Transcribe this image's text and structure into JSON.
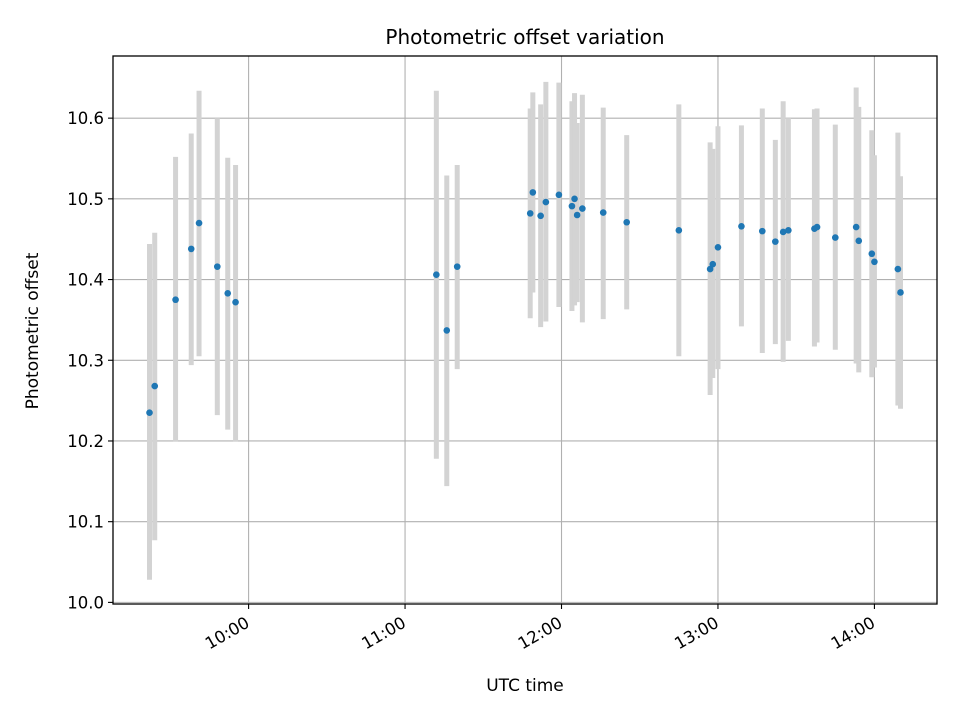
{
  "chart_data": {
    "type": "scatter",
    "title": "Photometric offset variation",
    "xlabel": "UTC time",
    "ylabel": "Photometric offset",
    "xlim": [
      "09:08",
      "14:24"
    ],
    "ylim": [
      9.998,
      10.677
    ],
    "x_ticks": [
      "10:00",
      "11:00",
      "12:00",
      "13:00",
      "14:00"
    ],
    "y_ticks": [
      "10.0",
      "10.1",
      "10.2",
      "10.3",
      "10.4",
      "10.5",
      "10.6"
    ],
    "grid": true,
    "colors": {
      "points": "#1f77b4",
      "error_bars": "#d3d3d3",
      "grid": "#b0b0b0"
    },
    "series": [
      {
        "points": [
          {
            "x": "09:22",
            "y": 10.235,
            "ylow": 10.028,
            "yhigh": 10.444
          },
          {
            "x": "09:24",
            "y": 10.268,
            "ylow": 10.077,
            "yhigh": 10.458
          },
          {
            "x": "09:32",
            "y": 10.375,
            "ylow": 10.199,
            "yhigh": 10.552
          },
          {
            "x": "09:38",
            "y": 10.438,
            "ylow": 10.294,
            "yhigh": 10.581
          },
          {
            "x": "09:41",
            "y": 10.47,
            "ylow": 10.305,
            "yhigh": 10.634
          },
          {
            "x": "09:48",
            "y": 10.416,
            "ylow": 10.232,
            "yhigh": 10.6
          },
          {
            "x": "09:52",
            "y": 10.383,
            "ylow": 10.214,
            "yhigh": 10.551
          },
          {
            "x": "09:55",
            "y": 10.372,
            "ylow": 10.199,
            "yhigh": 10.542
          },
          {
            "x": "11:12",
            "y": 10.406,
            "ylow": 10.178,
            "yhigh": 10.634
          },
          {
            "x": "11:16",
            "y": 10.337,
            "ylow": 10.144,
            "yhigh": 10.529
          },
          {
            "x": "11:20",
            "y": 10.416,
            "ylow": 10.289,
            "yhigh": 10.542
          },
          {
            "x": "11:48",
            "y": 10.482,
            "ylow": 10.352,
            "yhigh": 10.612
          },
          {
            "x": "11:49",
            "y": 10.508,
            "ylow": 10.384,
            "yhigh": 10.632
          },
          {
            "x": "11:52",
            "y": 10.479,
            "ylow": 10.341,
            "yhigh": 10.617
          },
          {
            "x": "11:54",
            "y": 10.496,
            "ylow": 10.348,
            "yhigh": 10.645
          },
          {
            "x": "11:59",
            "y": 10.505,
            "ylow": 10.366,
            "yhigh": 10.644
          },
          {
            "x": "12:04",
            "y": 10.491,
            "ylow": 10.361,
            "yhigh": 10.621
          },
          {
            "x": "12:05",
            "y": 10.5,
            "ylow": 10.368,
            "yhigh": 10.631
          },
          {
            "x": "12:06",
            "y": 10.48,
            "ylow": 10.372,
            "yhigh": 10.594
          },
          {
            "x": "12:08",
            "y": 10.488,
            "ylow": 10.347,
            "yhigh": 10.629
          },
          {
            "x": "12:16",
            "y": 10.483,
            "ylow": 10.351,
            "yhigh": 10.613
          },
          {
            "x": "12:25",
            "y": 10.471,
            "ylow": 10.363,
            "yhigh": 10.579
          },
          {
            "x": "12:45",
            "y": 10.461,
            "ylow": 10.305,
            "yhigh": 10.617
          },
          {
            "x": "12:57",
            "y": 10.413,
            "ylow": 10.257,
            "yhigh": 10.57
          },
          {
            "x": "12:58",
            "y": 10.419,
            "ylow": 10.278,
            "yhigh": 10.562
          },
          {
            "x": "13:00",
            "y": 10.44,
            "ylow": 10.289,
            "yhigh": 10.59
          },
          {
            "x": "13:09",
            "y": 10.466,
            "ylow": 10.342,
            "yhigh": 10.591
          },
          {
            "x": "13:17",
            "y": 10.46,
            "ylow": 10.309,
            "yhigh": 10.612
          },
          {
            "x": "13:22",
            "y": 10.447,
            "ylow": 10.32,
            "yhigh": 10.573
          },
          {
            "x": "13:25",
            "y": 10.459,
            "ylow": 10.298,
            "yhigh": 10.621
          },
          {
            "x": "13:27",
            "y": 10.461,
            "ylow": 10.324,
            "yhigh": 10.6
          },
          {
            "x": "13:37",
            "y": 10.463,
            "ylow": 10.317,
            "yhigh": 10.611
          },
          {
            "x": "13:38",
            "y": 10.465,
            "ylow": 10.322,
            "yhigh": 10.612
          },
          {
            "x": "13:45",
            "y": 10.452,
            "ylow": 10.313,
            "yhigh": 10.592
          },
          {
            "x": "13:53",
            "y": 10.465,
            "ylow": 10.296,
            "yhigh": 10.638
          },
          {
            "x": "13:54",
            "y": 10.448,
            "ylow": 10.285,
            "yhigh": 10.614
          },
          {
            "x": "13:59",
            "y": 10.432,
            "ylow": 10.279,
            "yhigh": 10.585
          },
          {
            "x": "14:00",
            "y": 10.422,
            "ylow": 10.291,
            "yhigh": 10.554
          },
          {
            "x": "14:09",
            "y": 10.413,
            "ylow": 10.244,
            "yhigh": 10.582
          },
          {
            "x": "14:10",
            "y": 10.384,
            "ylow": 10.24,
            "yhigh": 10.528
          }
        ]
      }
    ]
  }
}
